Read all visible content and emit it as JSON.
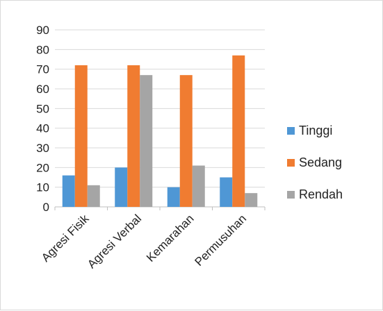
{
  "chart_data": {
    "type": "bar",
    "title": "",
    "xlabel": "",
    "ylabel": "",
    "ylim": [
      0,
      90
    ],
    "yticks": [
      0,
      10,
      20,
      30,
      40,
      50,
      60,
      70,
      80,
      90
    ],
    "grid": true,
    "legend_position": "right",
    "categories": [
      "Agresi Fisik",
      "Agresi Verbal",
      "Kemarahan",
      "Permusuhan"
    ],
    "series": [
      {
        "name": "Tinggi",
        "color": "#4f97d5",
        "values": [
          16,
          20,
          10,
          15
        ]
      },
      {
        "name": "Sedang",
        "color": "#f07c31",
        "values": [
          72,
          72,
          67,
          77
        ]
      },
      {
        "name": "Rendah",
        "color": "#a5a5a5",
        "values": [
          11,
          67,
          21,
          7
        ]
      }
    ]
  }
}
